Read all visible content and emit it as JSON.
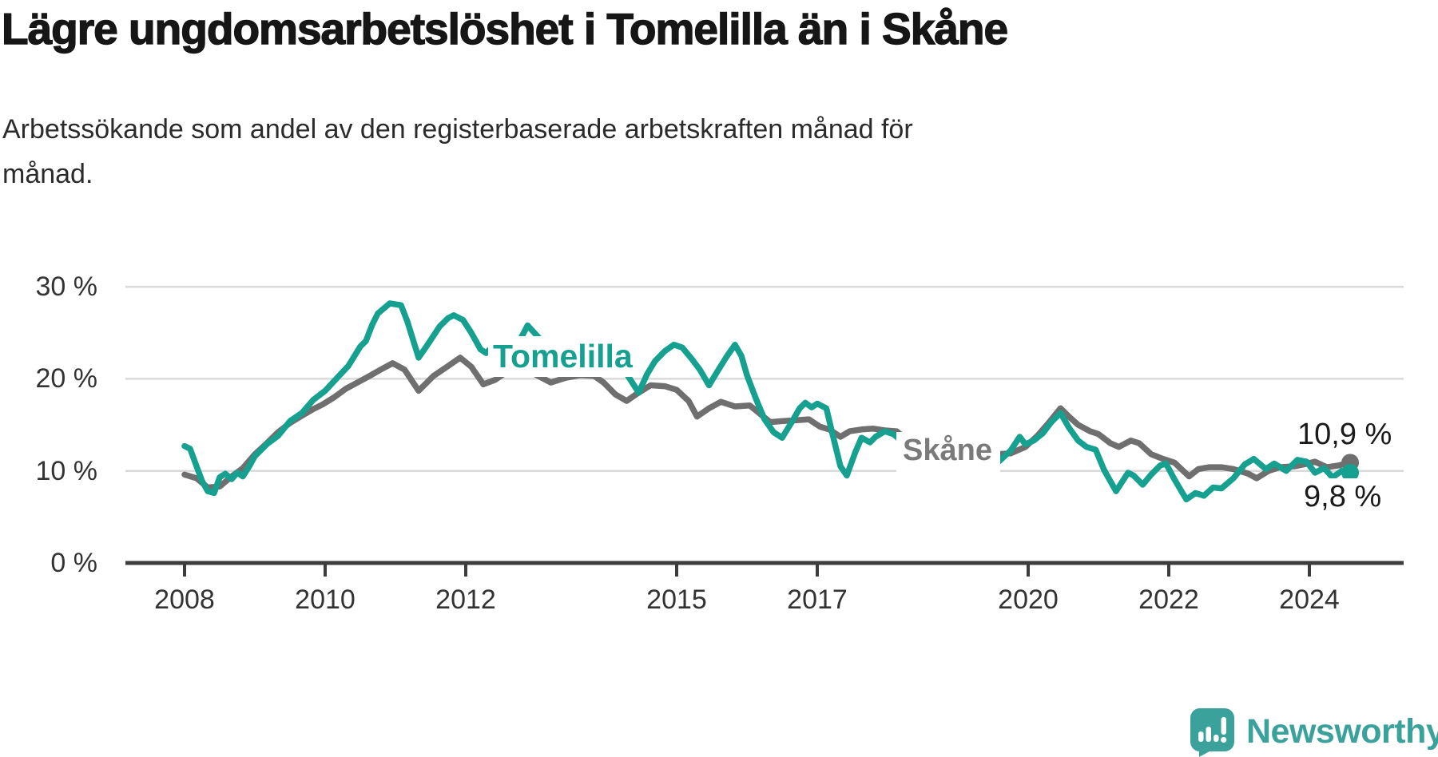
{
  "header": {
    "title": "Lägre ungdomsarbetslöshet i Tomelilla än i Skåne",
    "subtitle_lines": [
      "Arbetssökande som andel av den registerbaserade arbetskraften månad för",
      "månad."
    ]
  },
  "colors": {
    "tomelilla": "#16a08f",
    "skane": "#6f6f6f",
    "gridline": "#d9d9d9",
    "axis": "#3d3d3d",
    "tick_text": "#333333",
    "skane_label_text": "#7a7a7a",
    "logo_teal": "#3aa29b"
  },
  "chart_data": {
    "type": "line",
    "unit": "%",
    "x_axis": {
      "ticks": [
        2008,
        2010,
        2012,
        2015,
        2017,
        2020,
        2022,
        2024
      ],
      "tick_labels": [
        "2008",
        "2010",
        "2012",
        "2015",
        "2017",
        "2020",
        "2022",
        "2024"
      ],
      "range_start": 2008.0,
      "range_end": 2024.58
    },
    "y_axis": {
      "ticks": [
        0,
        10,
        20,
        30
      ],
      "tick_labels": [
        "0 %",
        "10 %",
        "20 %",
        "30 %"
      ],
      "ylim": [
        0,
        32
      ],
      "grid": true
    },
    "series": [
      {
        "name": "Skåne",
        "color": "#6f6f6f",
        "inline_label": "Skåne",
        "end_value_label": "10,9 %",
        "end_value": 10.9,
        "points": [
          [
            2008.0,
            9.6
          ],
          [
            2008.17,
            9.2
          ],
          [
            2008.33,
            8.2
          ],
          [
            2008.5,
            8.3
          ],
          [
            2008.67,
            9.4
          ],
          [
            2008.83,
            10.3
          ],
          [
            2009.0,
            11.8
          ],
          [
            2009.17,
            13.0
          ],
          [
            2009.33,
            14.2
          ],
          [
            2009.5,
            15.2
          ],
          [
            2009.67,
            16.0
          ],
          [
            2009.83,
            16.7
          ],
          [
            2009.96,
            17.2
          ],
          [
            2010.13,
            18.0
          ],
          [
            2010.29,
            18.9
          ],
          [
            2010.46,
            19.6
          ],
          [
            2010.63,
            20.3
          ],
          [
            2010.79,
            21.0
          ],
          [
            2010.96,
            21.7
          ],
          [
            2011.13,
            21.0
          ],
          [
            2011.33,
            18.7
          ],
          [
            2011.54,
            20.3
          ],
          [
            2011.75,
            21.4
          ],
          [
            2011.92,
            22.3
          ],
          [
            2012.08,
            21.3
          ],
          [
            2012.25,
            19.4
          ],
          [
            2012.42,
            19.9
          ],
          [
            2012.63,
            21.0
          ],
          [
            2012.75,
            21.2
          ],
          [
            2012.96,
            20.6
          ],
          [
            2013.21,
            19.6
          ],
          [
            2013.42,
            20.1
          ],
          [
            2013.63,
            20.4
          ],
          [
            2013.83,
            20.3
          ],
          [
            2013.96,
            19.6
          ],
          [
            2014.13,
            18.3
          ],
          [
            2014.29,
            17.6
          ],
          [
            2014.42,
            18.3
          ],
          [
            2014.63,
            19.3
          ],
          [
            2014.83,
            19.2
          ],
          [
            2015.0,
            18.8
          ],
          [
            2015.17,
            17.6
          ],
          [
            2015.29,
            15.9
          ],
          [
            2015.46,
            16.8
          ],
          [
            2015.63,
            17.5
          ],
          [
            2015.83,
            17.0
          ],
          [
            2016.04,
            17.1
          ],
          [
            2016.17,
            16.3
          ],
          [
            2016.33,
            15.3
          ],
          [
            2016.5,
            15.4
          ],
          [
            2016.71,
            15.5
          ],
          [
            2016.88,
            15.6
          ],
          [
            2017.04,
            14.8
          ],
          [
            2017.17,
            14.5
          ],
          [
            2017.33,
            13.7
          ],
          [
            2017.46,
            14.3
          ],
          [
            2017.63,
            14.5
          ],
          [
            2017.79,
            14.6
          ],
          [
            2017.96,
            14.4
          ],
          [
            2018.13,
            14.3
          ],
          [
            2018.29,
            13.3
          ],
          [
            2018.46,
            12.7
          ],
          [
            2018.63,
            12.2
          ],
          [
            2018.79,
            12.0
          ],
          [
            2019.13,
            12.0
          ],
          [
            2019.33,
            11.6
          ],
          [
            2019.54,
            11.8
          ],
          [
            2019.75,
            11.9
          ],
          [
            2019.96,
            12.6
          ],
          [
            2020.13,
            13.8
          ],
          [
            2020.29,
            15.2
          ],
          [
            2020.46,
            16.8
          ],
          [
            2020.58,
            15.9
          ],
          [
            2020.71,
            15.0
          ],
          [
            2020.88,
            14.3
          ],
          [
            2021.0,
            14.0
          ],
          [
            2021.17,
            13.0
          ],
          [
            2021.29,
            12.6
          ],
          [
            2021.46,
            13.3
          ],
          [
            2021.58,
            13.0
          ],
          [
            2021.75,
            11.8
          ],
          [
            2021.92,
            11.3
          ],
          [
            2022.08,
            10.9
          ],
          [
            2022.29,
            9.4
          ],
          [
            2022.42,
            10.2
          ],
          [
            2022.58,
            10.4
          ],
          [
            2022.75,
            10.4
          ],
          [
            2022.92,
            10.2
          ],
          [
            2023.13,
            9.7
          ],
          [
            2023.25,
            9.2
          ],
          [
            2023.42,
            10.0
          ],
          [
            2023.58,
            10.4
          ],
          [
            2023.79,
            10.5
          ],
          [
            2023.92,
            10.7
          ],
          [
            2024.08,
            11.0
          ],
          [
            2024.25,
            10.4
          ],
          [
            2024.42,
            10.6
          ],
          [
            2024.58,
            10.9
          ]
        ]
      },
      {
        "name": "Tomelilla",
        "color": "#16a08f",
        "inline_label": "Tomelilla",
        "end_value_label": "9,8 %",
        "end_value": 9.8,
        "points": [
          [
            2008.0,
            12.7
          ],
          [
            2008.08,
            12.4
          ],
          [
            2008.17,
            10.5
          ],
          [
            2008.25,
            8.9
          ],
          [
            2008.33,
            7.8
          ],
          [
            2008.42,
            7.6
          ],
          [
            2008.5,
            9.3
          ],
          [
            2008.58,
            9.7
          ],
          [
            2008.67,
            9.1
          ],
          [
            2008.75,
            9.8
          ],
          [
            2008.83,
            9.4
          ],
          [
            2008.92,
            10.5
          ],
          [
            2009.0,
            11.6
          ],
          [
            2009.17,
            12.9
          ],
          [
            2009.33,
            13.8
          ],
          [
            2009.5,
            15.4
          ],
          [
            2009.67,
            16.3
          ],
          [
            2009.83,
            17.7
          ],
          [
            2010.0,
            18.7
          ],
          [
            2010.17,
            20.1
          ],
          [
            2010.33,
            21.4
          ],
          [
            2010.5,
            23.5
          ],
          [
            2010.58,
            24.1
          ],
          [
            2010.67,
            25.9
          ],
          [
            2010.75,
            27.1
          ],
          [
            2010.92,
            28.2
          ],
          [
            2011.08,
            28.0
          ],
          [
            2011.17,
            26.2
          ],
          [
            2011.33,
            22.3
          ],
          [
            2011.42,
            23.3
          ],
          [
            2011.5,
            24.2
          ],
          [
            2011.63,
            25.7
          ],
          [
            2011.75,
            26.6
          ],
          [
            2011.83,
            26.9
          ],
          [
            2011.96,
            26.4
          ],
          [
            2012.08,
            25.0
          ],
          [
            2012.21,
            23.2
          ],
          [
            2012.29,
            22.8
          ],
          [
            2012.42,
            23.8
          ],
          [
            2012.54,
            24.3
          ],
          [
            2012.67,
            24.0
          ],
          [
            2012.75,
            23.9
          ],
          [
            2012.88,
            25.8
          ],
          [
            2013.0,
            24.8
          ],
          [
            2013.17,
            23.4
          ],
          [
            2013.33,
            23.6
          ],
          [
            2013.5,
            23.8
          ],
          [
            2013.63,
            24.0
          ],
          [
            2013.75,
            23.6
          ],
          [
            2013.96,
            24.1
          ],
          [
            2014.08,
            23.0
          ],
          [
            2014.25,
            21.0
          ],
          [
            2014.46,
            18.5
          ],
          [
            2014.58,
            20.5
          ],
          [
            2014.69,
            21.9
          ],
          [
            2014.83,
            23.0
          ],
          [
            2014.96,
            23.7
          ],
          [
            2015.08,
            23.4
          ],
          [
            2015.21,
            22.2
          ],
          [
            2015.33,
            21.0
          ],
          [
            2015.46,
            19.3
          ],
          [
            2015.58,
            20.8
          ],
          [
            2015.71,
            22.4
          ],
          [
            2015.83,
            23.7
          ],
          [
            2015.92,
            22.5
          ],
          [
            2016.0,
            20.4
          ],
          [
            2016.13,
            17.8
          ],
          [
            2016.25,
            15.6
          ],
          [
            2016.38,
            14.2
          ],
          [
            2016.5,
            13.6
          ],
          [
            2016.63,
            15.2
          ],
          [
            2016.75,
            16.8
          ],
          [
            2016.83,
            17.4
          ],
          [
            2016.92,
            16.9
          ],
          [
            2017.0,
            17.3
          ],
          [
            2017.13,
            16.8
          ],
          [
            2017.21,
            14.2
          ],
          [
            2017.33,
            10.5
          ],
          [
            2017.42,
            9.5
          ],
          [
            2017.54,
            12.0
          ],
          [
            2017.63,
            13.6
          ],
          [
            2017.75,
            13.1
          ],
          [
            2017.83,
            13.7
          ],
          [
            2017.96,
            14.3
          ],
          [
            2018.08,
            14.0
          ],
          [
            2018.25,
            13.0
          ],
          [
            2018.42,
            12.2
          ],
          [
            2018.58,
            11.8
          ],
          [
            2018.75,
            11.4
          ],
          [
            2018.92,
            10.7
          ],
          [
            2019.08,
            10.1
          ],
          [
            2019.25,
            9.5
          ],
          [
            2019.42,
            10.3
          ],
          [
            2019.58,
            11.0
          ],
          [
            2019.75,
            12.2
          ],
          [
            2019.88,
            13.7
          ],
          [
            2019.96,
            12.9
          ],
          [
            2020.08,
            13.3
          ],
          [
            2020.21,
            14.1
          ],
          [
            2020.33,
            15.3
          ],
          [
            2020.46,
            16.3
          ],
          [
            2020.58,
            14.7
          ],
          [
            2020.71,
            13.3
          ],
          [
            2020.83,
            12.6
          ],
          [
            2020.96,
            12.3
          ],
          [
            2021.08,
            10.1
          ],
          [
            2021.25,
            7.8
          ],
          [
            2021.42,
            9.8
          ],
          [
            2021.5,
            9.5
          ],
          [
            2021.63,
            8.5
          ],
          [
            2021.75,
            9.6
          ],
          [
            2021.88,
            10.6
          ],
          [
            2021.96,
            10.8
          ],
          [
            2022.08,
            9.1
          ],
          [
            2022.25,
            6.9
          ],
          [
            2022.38,
            7.6
          ],
          [
            2022.5,
            7.3
          ],
          [
            2022.63,
            8.2
          ],
          [
            2022.75,
            8.1
          ],
          [
            2022.92,
            9.2
          ],
          [
            2023.08,
            10.7
          ],
          [
            2023.21,
            11.3
          ],
          [
            2023.38,
            10.2
          ],
          [
            2023.5,
            10.8
          ],
          [
            2023.67,
            10.0
          ],
          [
            2023.83,
            11.2
          ],
          [
            2023.96,
            11.0
          ],
          [
            2024.08,
            9.8
          ],
          [
            2024.21,
            10.3
          ],
          [
            2024.33,
            9.3
          ],
          [
            2024.46,
            10.0
          ],
          [
            2024.58,
            9.8
          ]
        ]
      }
    ]
  },
  "footer": {
    "logo_text": "Newsworthy"
  }
}
